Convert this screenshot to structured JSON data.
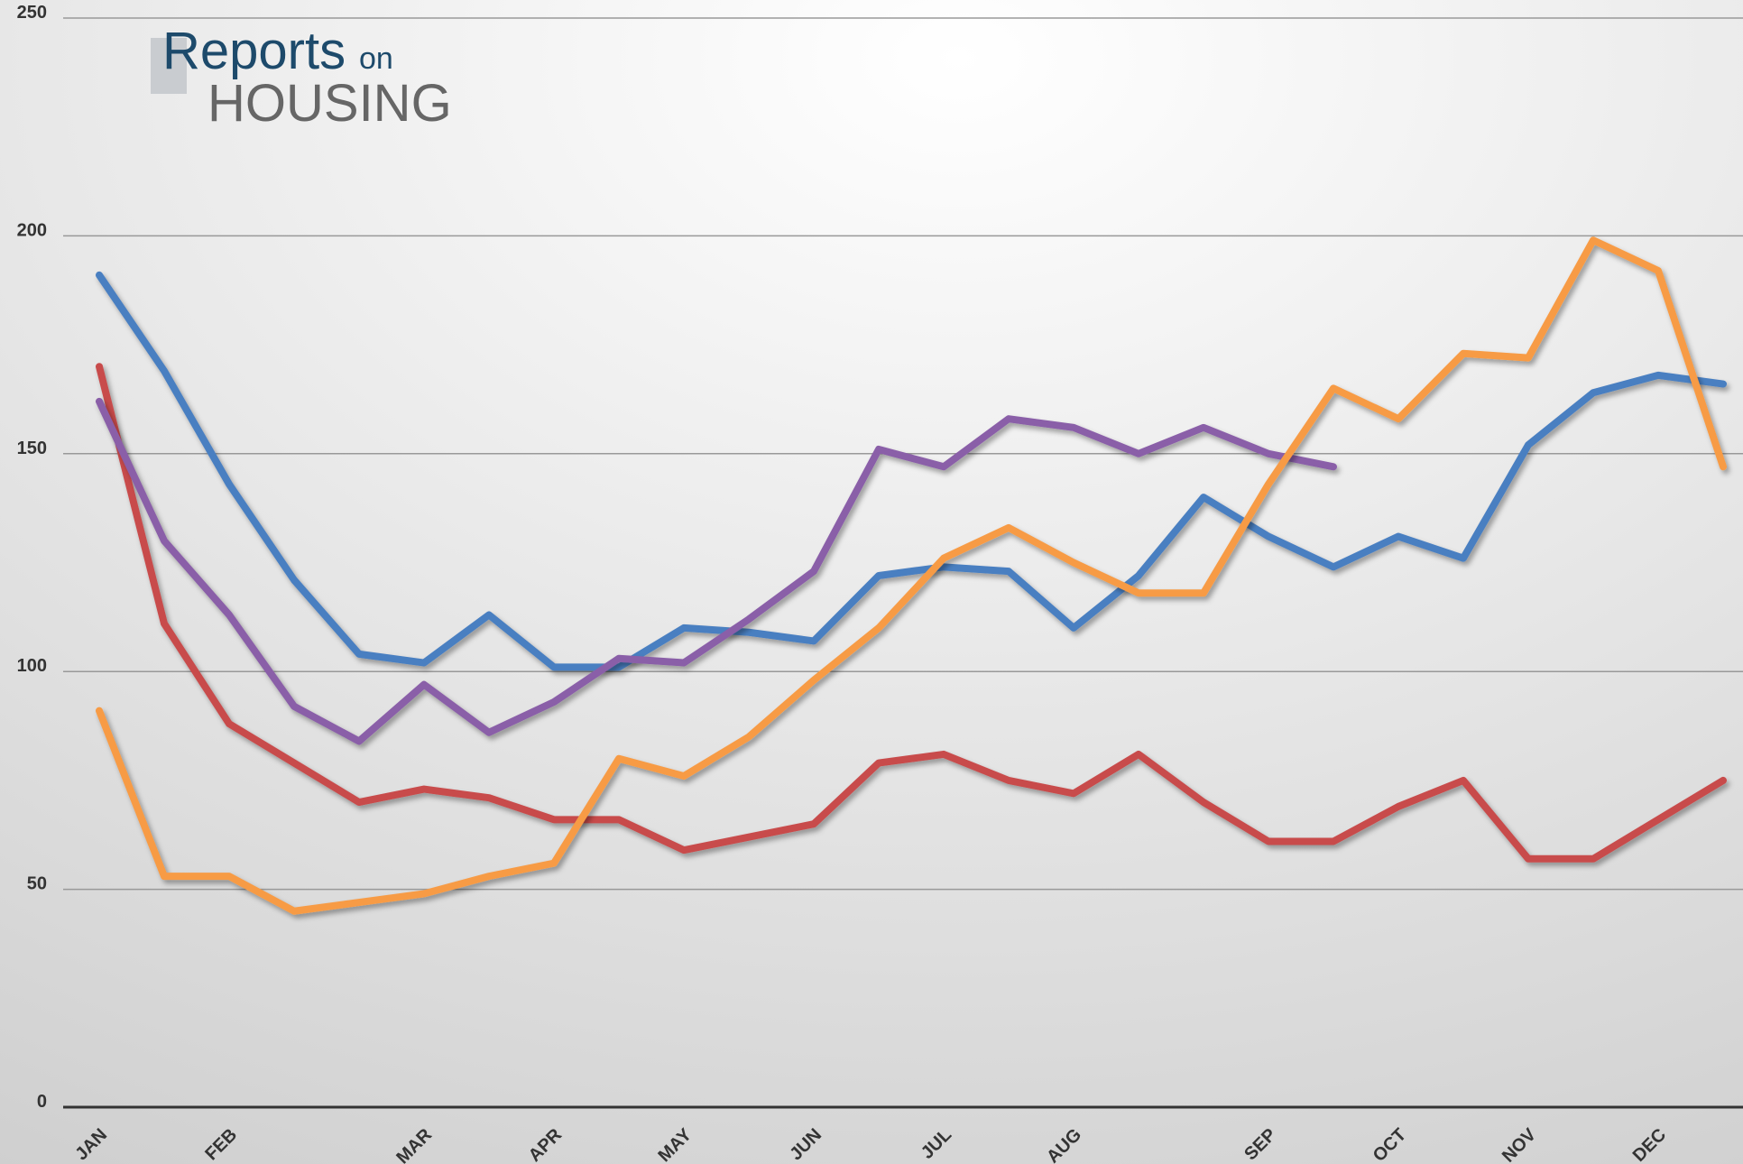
{
  "logo": {
    "line1": "Reports",
    "line1b": "on",
    "line2": "HOUSING"
  },
  "chart_data": {
    "type": "line",
    "categories": [
      "JAN",
      null,
      "FEB",
      null,
      null,
      "MAR",
      null,
      "APR",
      null,
      "MAY",
      null,
      "JUN",
      null,
      "JUL",
      null,
      "AUG",
      null,
      null,
      "SEP",
      null,
      "OCT",
      null,
      "NOV",
      null,
      "DEC",
      null
    ],
    "series": [
      {
        "color": "#4a7fc1",
        "values": [
          191,
          169,
          143,
          121,
          104,
          102,
          113,
          101,
          101,
          110,
          109,
          107,
          122,
          124,
          123,
          110,
          122,
          140,
          131,
          124,
          131,
          126,
          152,
          164,
          168,
          166
        ]
      },
      {
        "color": "#c84b4b",
        "values": [
          170,
          111,
          88,
          79,
          70,
          73,
          71,
          66,
          66,
          59,
          62,
          65,
          79,
          81,
          75,
          72,
          81,
          70,
          61,
          61,
          69,
          75,
          57,
          57,
          66,
          75
        ]
      },
      {
        "color": "#8a5fa8",
        "values": [
          162,
          130,
          113,
          92,
          84,
          97,
          86,
          93,
          103,
          102,
          112,
          123,
          151,
          147,
          158,
          156,
          150,
          156,
          150,
          147,
          null,
          null,
          null,
          null,
          null,
          null
        ]
      },
      {
        "color": "#f79b45",
        "values": [
          91,
          53,
          53,
          45,
          47,
          49,
          53,
          56,
          80,
          76,
          85,
          98,
          110,
          126,
          133,
          125,
          118,
          118,
          143,
          165,
          158,
          173,
          172,
          199,
          192,
          147
        ]
      }
    ],
    "ylim": [
      0,
      250
    ],
    "yticks": [
      0,
      50,
      100,
      150,
      200,
      250
    ],
    "grid": true
  }
}
